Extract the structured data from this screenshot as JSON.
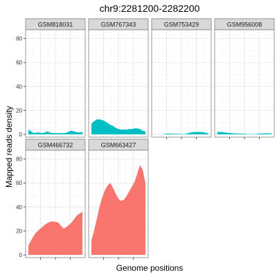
{
  "chart_data": {
    "type": "area",
    "title": "chr9:2281200-2282200",
    "xlabel": "Genome positions",
    "ylabel": "Mapped reads density",
    "ylim": [
      0,
      85
    ],
    "yticks": [
      0,
      20,
      40,
      60,
      80
    ],
    "xlim": [
      0,
      1
    ],
    "facet_columns": 4,
    "grid": true,
    "legend": "none",
    "colors": {
      "area_top_row": "#00BFC4",
      "area_bottom_row": "#F8766D",
      "strip_fill": "#D9D9D9",
      "panel_border": "#7F7F7F",
      "grid_major": "#E5E5E5",
      "grid_minor": "#F2F2F2"
    },
    "series": [
      {
        "name": "GSM818031",
        "color": "#00BFC4",
        "x": [
          0,
          0.05,
          0.1,
          0.15,
          0.2,
          0.25,
          0.3,
          0.35,
          0.4,
          0.45,
          0.5,
          0.55,
          0.6,
          0.65,
          0.7,
          0.75,
          0.8,
          0.85,
          0.9,
          0.95,
          1
        ],
        "values": [
          4,
          2.5,
          1,
          1.5,
          1.5,
          1,
          1.5,
          2.5,
          1.5,
          1,
          1,
          1,
          1,
          1,
          1.2,
          2.5,
          3,
          2.5,
          1.8,
          1.5,
          2
        ]
      },
      {
        "name": "GSM767343",
        "color": "#00BFC4",
        "x": [
          0,
          0.05,
          0.1,
          0.15,
          0.2,
          0.25,
          0.3,
          0.35,
          0.4,
          0.45,
          0.5,
          0.55,
          0.6,
          0.65,
          0.7,
          0.75,
          0.8,
          0.85,
          0.9,
          0.95,
          1
        ],
        "values": [
          9,
          11,
          12.5,
          12.5,
          12,
          11,
          9.5,
          8,
          7,
          5.5,
          4.5,
          4,
          4,
          4,
          4.5,
          4.5,
          5,
          5,
          4.5,
          3,
          2.5
        ]
      },
      {
        "name": "GSM753429",
        "color": "#00BFC4",
        "x": [
          0,
          0.05,
          0.1,
          0.15,
          0.2,
          0.25,
          0.3,
          0.35,
          0.4,
          0.45,
          0.5,
          0.55,
          0.6,
          0.65,
          0.7,
          0.75,
          0.8,
          0.85,
          0.9,
          0.95,
          1
        ],
        "values": [
          0,
          0,
          0,
          0,
          0.5,
          0.6,
          0.6,
          0.5,
          0.5,
          0.4,
          0.3,
          0.3,
          0.6,
          1.2,
          1.8,
          2,
          2,
          2,
          1.8,
          1.4,
          0.8
        ]
      },
      {
        "name": "GSM956008",
        "color": "#00BFC4",
        "x": [
          0,
          0.05,
          0.1,
          0.15,
          0.2,
          0.25,
          0.3,
          0.35,
          0.4,
          0.45,
          0.5,
          0.55,
          0.6,
          0.65,
          0.7,
          0.75,
          0.8,
          0.85,
          0.9,
          0.95,
          1
        ],
        "values": [
          2,
          2,
          1.8,
          1.5,
          1.2,
          1,
          0.8,
          0.7,
          0.6,
          0.5,
          0.4,
          0.3,
          0.3,
          0.3,
          0.3,
          0.5,
          0.7,
          0.8,
          0.8,
          0.8,
          0.8
        ]
      },
      {
        "name": "GSM466732",
        "color": "#F8766D",
        "x": [
          0,
          0.05,
          0.1,
          0.15,
          0.2,
          0.25,
          0.3,
          0.35,
          0.4,
          0.45,
          0.5,
          0.55,
          0.6,
          0.65,
          0.7,
          0.75,
          0.8,
          0.85,
          0.9,
          0.95,
          1
        ],
        "values": [
          8,
          12,
          16,
          19,
          21,
          23,
          25,
          26.5,
          27.5,
          28,
          27.5,
          27,
          24.5,
          22,
          23,
          25,
          27,
          30,
          33,
          34.5,
          36
        ]
      },
      {
        "name": "GSM663427",
        "color": "#F8766D",
        "x": [
          0,
          0.05,
          0.1,
          0.15,
          0.2,
          0.25,
          0.3,
          0.35,
          0.4,
          0.45,
          0.5,
          0.55,
          0.6,
          0.65,
          0.7,
          0.75,
          0.8,
          0.85,
          0.9,
          0.95,
          1
        ],
        "values": [
          12,
          20,
          30,
          40,
          48,
          54,
          58,
          60,
          56,
          51,
          47,
          45,
          46,
          49,
          53,
          57,
          61,
          68,
          75,
          71,
          60
        ]
      }
    ]
  }
}
